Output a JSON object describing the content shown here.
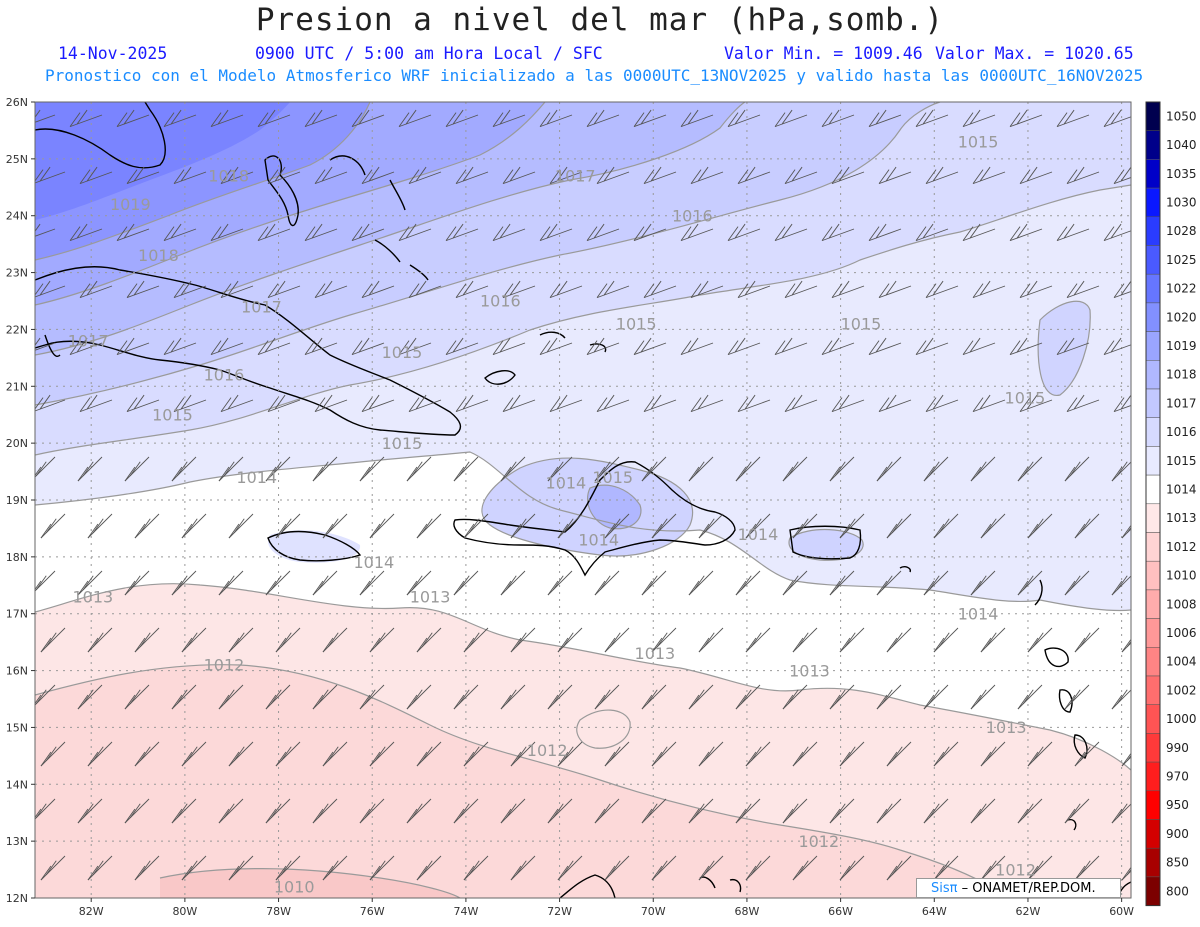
{
  "header": {
    "title": "Presion a nivel del mar (hPa,somb.)",
    "date": "14-Nov-2025",
    "time_info": "0900 UTC / 5:00 am Hora Local / SFC",
    "min_label": "Valor Min. = 1009.46",
    "max_label": "Valor Max. = 1020.65",
    "subtitle": "Pronostico con el Modelo Atmosferico WRF inicializado a las 0000UTC_13NOV2025 y valido hasta las  0000UTC_16NOV2025"
  },
  "axes": {
    "lat_labels": [
      "26N",
      "25N",
      "24N",
      "23N",
      "22N",
      "21N",
      "20N",
      "19N",
      "18N",
      "17N",
      "16N",
      "15N",
      "14N",
      "13N",
      "12N"
    ],
    "lon_labels": [
      "82W",
      "80W",
      "78W",
      "76W",
      "74W",
      "72W",
      "70W",
      "68W",
      "66W",
      "64W",
      "62W",
      "60W"
    ]
  },
  "isobar_labels": [
    {
      "text": "1019",
      "lon": -81.6,
      "lat": 24.1
    },
    {
      "text": "1018",
      "lon": -79.5,
      "lat": 24.6
    },
    {
      "text": "1017",
      "lon": -72.1,
      "lat": 24.6
    },
    {
      "text": "1016",
      "lon": -69.6,
      "lat": 23.9
    },
    {
      "text": "1015",
      "lon": -63.5,
      "lat": 25.2
    },
    {
      "text": "1018",
      "lon": -81.0,
      "lat": 23.2
    },
    {
      "text": "1017",
      "lon": -78.8,
      "lat": 22.3
    },
    {
      "text": "1016",
      "lon": -73.7,
      "lat": 22.4
    },
    {
      "text": "1015",
      "lon": -70.8,
      "lat": 22.0
    },
    {
      "text": "1015",
      "lon": -66.0,
      "lat": 22.0
    },
    {
      "text": "1017",
      "lon": -82.5,
      "lat": 21.7
    },
    {
      "text": "1016",
      "lon": -79.6,
      "lat": 21.1
    },
    {
      "text": "1015",
      "lon": -75.8,
      "lat": 21.5
    },
    {
      "text": "1015",
      "lon": -80.7,
      "lat": 20.4
    },
    {
      "text": "1015",
      "lon": -75.8,
      "lat": 19.9
    },
    {
      "text": "1015",
      "lon": -62.5,
      "lat": 20.7
    },
    {
      "text": "1014",
      "lon": -78.9,
      "lat": 19.3
    },
    {
      "text": "1014",
      "lon": -72.3,
      "lat": 19.2
    },
    {
      "text": "1015",
      "lon": -71.3,
      "lat": 19.3
    },
    {
      "text": "1014",
      "lon": -71.6,
      "lat": 18.2
    },
    {
      "text": "1014",
      "lon": -68.2,
      "lat": 18.3
    },
    {
      "text": "1014",
      "lon": -76.4,
      "lat": 17.8
    },
    {
      "text": "1013",
      "lon": -82.4,
      "lat": 17.2
    },
    {
      "text": "1013",
      "lon": -75.2,
      "lat": 17.2
    },
    {
      "text": "1014",
      "lon": -63.5,
      "lat": 16.9
    },
    {
      "text": "1013",
      "lon": -70.4,
      "lat": 16.2
    },
    {
      "text": "1013",
      "lon": -67.1,
      "lat": 15.9
    },
    {
      "text": "1012",
      "lon": -79.6,
      "lat": 16.0
    },
    {
      "text": "1013",
      "lon": -62.9,
      "lat": 14.9
    },
    {
      "text": "1012",
      "lon": -72.7,
      "lat": 14.5
    },
    {
      "text": "1012",
      "lon": -66.9,
      "lat": 12.9
    },
    {
      "text": "1012",
      "lon": -62.7,
      "lat": 12.4
    },
    {
      "text": "1010",
      "lon": -78.1,
      "lat": 12.1
    }
  ],
  "colorbar": {
    "labels": [
      "1050",
      "1040",
      "1035",
      "1030",
      "1028",
      "1025",
      "1022",
      "1020",
      "1019",
      "1018",
      "1017",
      "1016",
      "1015",
      "1014",
      "1013",
      "1012",
      "1010",
      "1008",
      "1006",
      "1004",
      "1002",
      "1000",
      "990",
      "970",
      "950",
      "900",
      "850",
      "800"
    ],
    "colors": [
      "#00004f",
      "#00008a",
      "#0000c8",
      "#0a18ff",
      "#2a3cff",
      "#4a5aff",
      "#6676ff",
      "#8290ff",
      "#9aa5ff",
      "#b0b8ff",
      "#c2c8ff",
      "#d6daff",
      "#e8eaff",
      "#ffffff",
      "#ffe8e8",
      "#ffd4d4",
      "#ffc0c0",
      "#ffacac",
      "#ff9898",
      "#ff8484",
      "#ff6e6e",
      "#ff5454",
      "#ff3a3a",
      "#ff1e1e",
      "#ff0000",
      "#d40000",
      "#a80000",
      "#7c0000"
    ]
  },
  "credit": {
    "brand": "Sisπ",
    "text": "– ONAMET/REP.DOM."
  }
}
